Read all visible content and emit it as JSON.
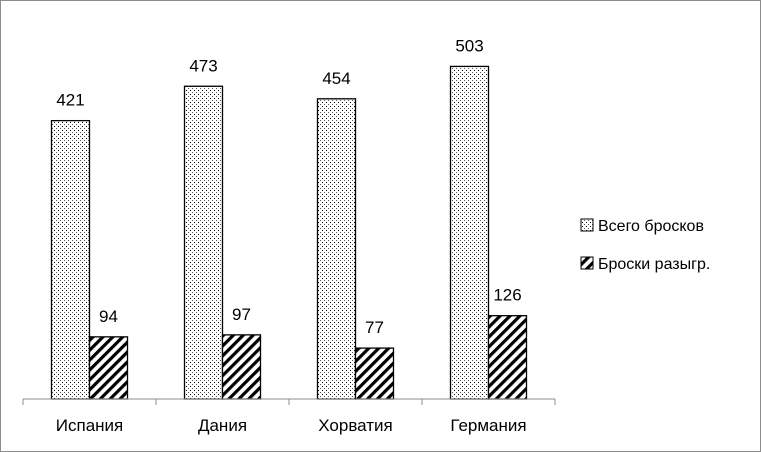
{
  "chart_data": {
    "type": "bar",
    "categories": [
      "Испания",
      "Дания",
      "Хорватия",
      "Германия"
    ],
    "series": [
      {
        "name": "Всего бросков",
        "values": [
          421,
          473,
          454,
          503
        ],
        "pattern": "dots"
      },
      {
        "name": "Броски разыгр.",
        "values": [
          94,
          97,
          77,
          126
        ],
        "pattern": "diagonal-hatch"
      }
    ],
    "ylim": [
      0,
      550
    ],
    "grid": false,
    "legend_position": "right",
    "data_labels": true,
    "bar_stroke_color": "#000000",
    "axis_color": "#8c8c8c"
  }
}
